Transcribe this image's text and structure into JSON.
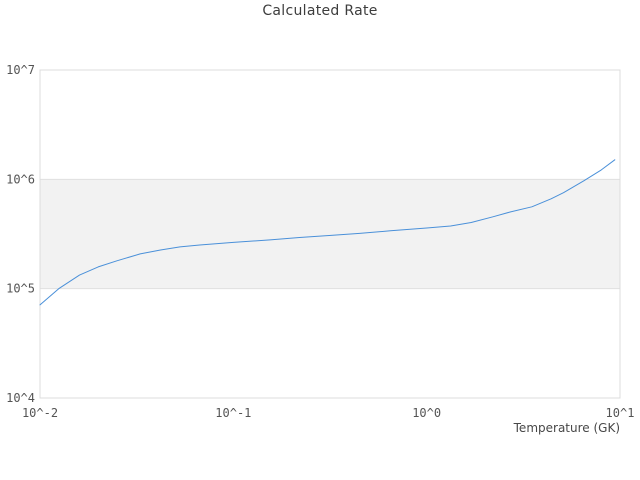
{
  "figure": {
    "background": "#ffffff"
  },
  "chart_data": {
    "type": "line",
    "title": "Calculated Rate",
    "xlabel": "Temperature (GK)",
    "ylabel": "",
    "xscale": "log",
    "yscale": "log",
    "xlim": [
      0.01,
      10
    ],
    "ylim": [
      10000,
      10000000
    ],
    "grid": "horizontal-only",
    "legend": "none",
    "x_ticks": [
      {
        "value": 0.01,
        "label": "10^-2"
      },
      {
        "value": 0.1,
        "label": "10^-1"
      },
      {
        "value": 1,
        "label": "10^0"
      },
      {
        "value": 10,
        "label": "10^1"
      }
    ],
    "y_ticks": [
      {
        "value": 10000,
        "label": "10^4"
      },
      {
        "value": 100000,
        "label": "10^5"
      },
      {
        "value": 1000000,
        "label": "10^6"
      },
      {
        "value": 10000000,
        "label": "10^7"
      }
    ],
    "shaded_band": {
      "axis": "y",
      "from": 100000,
      "to": 1000000,
      "color": "#f2f2f2"
    },
    "colors": {
      "line": "#4a90d9",
      "grid": "#e0e0e0",
      "border": "#dcdcdc",
      "band": "#f2f2f2",
      "title_text": "#3d3d3d",
      "tick_text": "#545454"
    },
    "series": [
      {
        "name": "calculated-rate",
        "color": "#4a90d9",
        "points": [
          [
            0.01,
            71000
          ],
          [
            0.0125,
            100000
          ],
          [
            0.016,
            133000
          ],
          [
            0.02,
            158000
          ],
          [
            0.025,
            180000
          ],
          [
            0.033,
            208000
          ],
          [
            0.042,
            226000
          ],
          [
            0.053,
            241000
          ],
          [
            0.067,
            251000
          ],
          [
            0.1,
            265000
          ],
          [
            0.155,
            279000
          ],
          [
            0.22,
            294000
          ],
          [
            0.32,
            307000
          ],
          [
            0.45,
            320000
          ],
          [
            0.65,
            338000
          ],
          [
            1.0,
            359000
          ],
          [
            1.33,
            374000
          ],
          [
            1.7,
            403000
          ],
          [
            2.2,
            454000
          ],
          [
            2.7,
            503000
          ],
          [
            3.5,
            561000
          ],
          [
            4.4,
            663000
          ],
          [
            5.1,
            755000
          ],
          [
            6.5,
            970000
          ],
          [
            8.0,
            1220000
          ],
          [
            9.4,
            1510000
          ]
        ]
      }
    ]
  }
}
